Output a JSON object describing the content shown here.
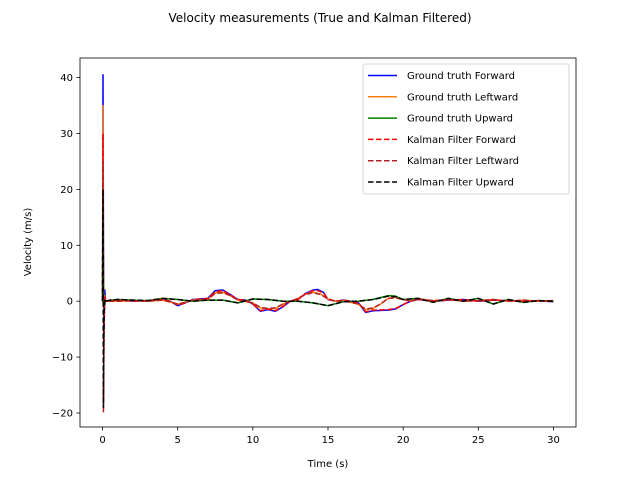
{
  "chart_data": {
    "type": "line",
    "title": "Velocity measurements (True and Kalman Filtered)",
    "xlabel": "Time (s)",
    "ylabel": "Velocity (m/s)",
    "xlim": [
      -1.5,
      31.5
    ],
    "ylim": [
      -22.5,
      43.5
    ],
    "xticks": [
      0,
      5,
      10,
      15,
      20,
      25,
      30
    ],
    "yticks": [
      -20,
      -10,
      0,
      10,
      20,
      30,
      40
    ],
    "grid": false,
    "legend_position": "top-right",
    "series": [
      {
        "name": "Ground truth Forward",
        "color": "#0000ff",
        "dash": "solid",
        "points": [
          [
            0,
            0
          ],
          [
            0.03,
            40.5
          ],
          [
            0.06,
            10
          ],
          [
            0.1,
            -5
          ],
          [
            0.15,
            2
          ],
          [
            0.2,
            0
          ],
          [
            0.5,
            0
          ],
          [
            1,
            0.2
          ],
          [
            2,
            0
          ],
          [
            3,
            0.1
          ],
          [
            4,
            0.3
          ],
          [
            4.5,
            0
          ],
          [
            5,
            -0.8
          ],
          [
            5.5,
            -0.3
          ],
          [
            6,
            0.3
          ],
          [
            7,
            0.5
          ],
          [
            7.5,
            1.9
          ],
          [
            8,
            2
          ],
          [
            8.5,
            1.2
          ],
          [
            9,
            0.3
          ],
          [
            9.5,
            0.2
          ],
          [
            10,
            -0.5
          ],
          [
            10.5,
            -1.8
          ],
          [
            11,
            -1.5
          ],
          [
            11.5,
            -1.8
          ],
          [
            12,
            -1
          ],
          [
            12.5,
            0
          ],
          [
            13,
            0.3
          ],
          [
            13.5,
            1.4
          ],
          [
            14,
            2
          ],
          [
            14.3,
            2.1
          ],
          [
            14.7,
            1.6
          ],
          [
            15,
            0.3
          ],
          [
            15.5,
            0
          ],
          [
            16,
            0.2
          ],
          [
            17,
            -0.2
          ],
          [
            17.5,
            -2
          ],
          [
            18,
            -1.7
          ],
          [
            19,
            -1.6
          ],
          [
            19.5,
            -1.4
          ],
          [
            20,
            -0.6
          ],
          [
            20.5,
            0
          ],
          [
            21,
            0.3
          ],
          [
            22,
            0
          ],
          [
            23,
            0.2
          ],
          [
            24,
            0.3
          ],
          [
            25,
            0
          ],
          [
            26,
            0.2
          ],
          [
            27,
            0.1
          ],
          [
            28,
            0
          ],
          [
            29,
            0.1
          ],
          [
            30,
            -0.1
          ]
        ]
      },
      {
        "name": "Ground truth Leftward",
        "color": "#ff7f0e",
        "dash": "solid",
        "points": [
          [
            0,
            0
          ],
          [
            0.03,
            35
          ],
          [
            0.06,
            5
          ],
          [
            0.1,
            -3
          ],
          [
            0.15,
            1
          ],
          [
            0.2,
            0
          ],
          [
            0.5,
            0
          ],
          [
            1,
            0
          ],
          [
            2,
            0.1
          ],
          [
            3,
            0
          ],
          [
            4,
            0.2
          ],
          [
            5,
            -0.5
          ],
          [
            5.5,
            -0.2
          ],
          [
            6,
            0.2
          ],
          [
            7,
            0.3
          ],
          [
            7.5,
            1.5
          ],
          [
            8,
            1.6
          ],
          [
            8.5,
            1
          ],
          [
            9,
            0.2
          ],
          [
            10,
            -0.3
          ],
          [
            10.5,
            -1.2
          ],
          [
            11,
            -1.4
          ],
          [
            11.5,
            -1.3
          ],
          [
            12,
            -0.5
          ],
          [
            12.5,
            0
          ],
          [
            13,
            0.5
          ],
          [
            13.5,
            1.3
          ],
          [
            14,
            1.6
          ],
          [
            14.5,
            1.3
          ],
          [
            15,
            0.4
          ],
          [
            15.5,
            0
          ],
          [
            16,
            0.1
          ],
          [
            17,
            -0.5
          ],
          [
            17.5,
            -1.5
          ],
          [
            18,
            -1.3
          ],
          [
            18.5,
            -0.5
          ],
          [
            19,
            0.5
          ],
          [
            19.5,
            0.7
          ],
          [
            20,
            0.3
          ],
          [
            20.5,
            0
          ],
          [
            21,
            0.4
          ],
          [
            22,
            0.1
          ],
          [
            23,
            0.3
          ],
          [
            24,
            0
          ],
          [
            25,
            0.1
          ],
          [
            26,
            0.3
          ],
          [
            27,
            0
          ],
          [
            28,
            0.2
          ],
          [
            29,
            0
          ],
          [
            30,
            0.1
          ]
        ]
      },
      {
        "name": "Ground truth Upward",
        "color": "#008000",
        "dash": "solid",
        "points": [
          [
            0,
            0
          ],
          [
            0.03,
            20
          ],
          [
            0.06,
            2
          ],
          [
            0.1,
            -1
          ],
          [
            0.2,
            0
          ],
          [
            0.5,
            0.2
          ],
          [
            1,
            0.3
          ],
          [
            2,
            0.2
          ],
          [
            3,
            0.1
          ],
          [
            4,
            0.5
          ],
          [
            5,
            0.3
          ],
          [
            6,
            0
          ],
          [
            7,
            0.2
          ],
          [
            8,
            0.2
          ],
          [
            9,
            -0.3
          ],
          [
            10,
            0.4
          ],
          [
            11,
            0.3
          ],
          [
            12,
            0
          ],
          [
            13,
            0
          ],
          [
            14,
            -0.3
          ],
          [
            15,
            -0.8
          ],
          [
            16,
            -0.1
          ],
          [
            17,
            0
          ],
          [
            18,
            0.3
          ],
          [
            19,
            1
          ],
          [
            19.5,
            0.9
          ],
          [
            20,
            0.3
          ],
          [
            21,
            0.5
          ],
          [
            22,
            -0.2
          ],
          [
            23,
            0.5
          ],
          [
            24,
            0
          ],
          [
            25,
            0.5
          ],
          [
            26,
            -0.5
          ],
          [
            27,
            0.3
          ],
          [
            28,
            -0.2
          ],
          [
            29,
            0.1
          ],
          [
            30,
            0
          ]
        ]
      },
      {
        "name": "Kalman Filter Forward",
        "color": "#ff0000",
        "dash": "dashed",
        "points": [
          [
            0,
            0
          ],
          [
            0.03,
            30
          ],
          [
            0.06,
            -18
          ],
          [
            0.1,
            -5
          ],
          [
            0.15,
            1
          ],
          [
            0.2,
            0
          ],
          [
            0.5,
            0
          ],
          [
            1,
            0.2
          ],
          [
            2,
            0
          ],
          [
            3,
            0.1
          ],
          [
            4,
            0.3
          ],
          [
            4.5,
            0
          ],
          [
            5,
            -0.7
          ],
          [
            5.5,
            -0.3
          ],
          [
            6,
            0.3
          ],
          [
            7,
            0.5
          ],
          [
            7.5,
            1.7
          ],
          [
            8,
            1.9
          ],
          [
            8.5,
            1.1
          ],
          [
            9,
            0.3
          ],
          [
            9.5,
            0.2
          ],
          [
            10,
            -0.5
          ],
          [
            10.5,
            -1.7
          ],
          [
            11,
            -1.4
          ],
          [
            11.5,
            -1.7
          ],
          [
            12,
            -0.9
          ],
          [
            12.5,
            0
          ],
          [
            13,
            0.3
          ],
          [
            13.5,
            1.3
          ],
          [
            14,
            1.9
          ],
          [
            14.3,
            1.9
          ],
          [
            14.7,
            1.5
          ],
          [
            15,
            0.3
          ],
          [
            15.5,
            0
          ],
          [
            16,
            0.2
          ],
          [
            17,
            -0.2
          ],
          [
            17.5,
            -1.9
          ],
          [
            18,
            -1.6
          ],
          [
            19,
            -1.5
          ],
          [
            19.5,
            -1.3
          ],
          [
            20,
            -0.6
          ],
          [
            20.5,
            0
          ],
          [
            21,
            0.3
          ],
          [
            22,
            0
          ],
          [
            23,
            0.2
          ],
          [
            24,
            0.3
          ],
          [
            25,
            0
          ],
          [
            26,
            0.2
          ],
          [
            27,
            0.1
          ],
          [
            28,
            0
          ],
          [
            29,
            0.1
          ],
          [
            30,
            -0.1
          ]
        ]
      },
      {
        "name": "Kalman Filter Leftward",
        "color": "#b22222",
        "dash": "dashed",
        "points": [
          [
            0,
            0
          ],
          [
            0.03,
            25
          ],
          [
            0.06,
            -20
          ],
          [
            0.1,
            -3
          ],
          [
            0.15,
            0.5
          ],
          [
            0.2,
            0
          ],
          [
            0.5,
            0
          ],
          [
            1,
            0
          ],
          [
            2,
            0.1
          ],
          [
            3,
            0
          ],
          [
            4,
            0.2
          ],
          [
            5,
            -0.5
          ],
          [
            5.5,
            -0.2
          ],
          [
            6,
            0.2
          ],
          [
            7,
            0.3
          ],
          [
            7.5,
            1.4
          ],
          [
            8,
            1.5
          ],
          [
            8.5,
            1
          ],
          [
            9,
            0.2
          ],
          [
            10,
            -0.3
          ],
          [
            10.5,
            -1.1
          ],
          [
            11,
            -1.3
          ],
          [
            11.5,
            -1.2
          ],
          [
            12,
            -0.5
          ],
          [
            12.5,
            0
          ],
          [
            13,
            0.5
          ],
          [
            13.5,
            1.2
          ],
          [
            14,
            1.5
          ],
          [
            14.5,
            1.2
          ],
          [
            15,
            0.4
          ],
          [
            15.5,
            0
          ],
          [
            16,
            0.1
          ],
          [
            17,
            -0.5
          ],
          [
            17.5,
            -1.4
          ],
          [
            18,
            -1.2
          ],
          [
            18.5,
            -0.5
          ],
          [
            19,
            0.5
          ],
          [
            19.5,
            0.6
          ],
          [
            20,
            0.3
          ],
          [
            20.5,
            0
          ],
          [
            21,
            0.4
          ],
          [
            22,
            0.1
          ],
          [
            23,
            0.3
          ],
          [
            24,
            0
          ],
          [
            25,
            0.1
          ],
          [
            26,
            0.3
          ],
          [
            27,
            0
          ],
          [
            28,
            0.2
          ],
          [
            29,
            0
          ],
          [
            30,
            0.1
          ]
        ]
      },
      {
        "name": "Kalman Filter Upward",
        "color": "#000000",
        "dash": "dashed",
        "points": [
          [
            0,
            0
          ],
          [
            0.03,
            20
          ],
          [
            0.06,
            -19
          ],
          [
            0.1,
            -2
          ],
          [
            0.15,
            0.3
          ],
          [
            0.2,
            0
          ],
          [
            0.5,
            0.2
          ],
          [
            1,
            0.3
          ],
          [
            2,
            0.2
          ],
          [
            3,
            0.1
          ],
          [
            4,
            0.5
          ],
          [
            5,
            0.3
          ],
          [
            6,
            0
          ],
          [
            7,
            0.2
          ],
          [
            8,
            0.2
          ],
          [
            9,
            -0.3
          ],
          [
            10,
            0.4
          ],
          [
            11,
            0.3
          ],
          [
            12,
            0
          ],
          [
            13,
            0
          ],
          [
            14,
            -0.3
          ],
          [
            15,
            -0.8
          ],
          [
            16,
            -0.1
          ],
          [
            17,
            0
          ],
          [
            18,
            0.3
          ],
          [
            19,
            0.9
          ],
          [
            19.5,
            0.8
          ],
          [
            20,
            0.3
          ],
          [
            21,
            0.5
          ],
          [
            22,
            -0.2
          ],
          [
            23,
            0.5
          ],
          [
            24,
            0
          ],
          [
            25,
            0.5
          ],
          [
            26,
            -0.5
          ],
          [
            27,
            0.3
          ],
          [
            28,
            -0.2
          ],
          [
            29,
            0.1
          ],
          [
            30,
            0
          ]
        ]
      }
    ]
  }
}
